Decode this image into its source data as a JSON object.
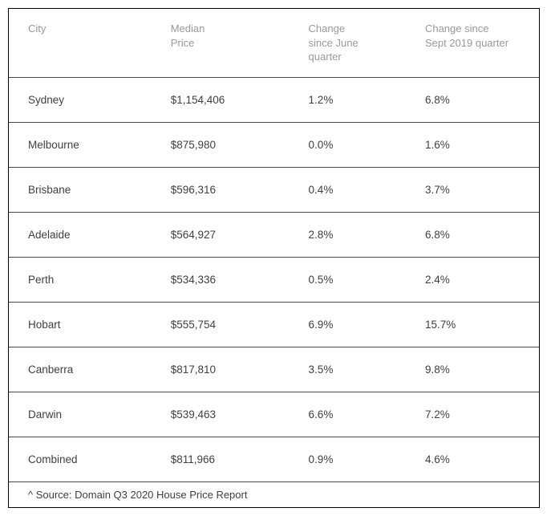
{
  "table": {
    "type": "table",
    "columns": [
      {
        "label": "City",
        "width_pct": 29,
        "align": "left"
      },
      {
        "label": "Median\nPrice",
        "width_pct": 26,
        "align": "left"
      },
      {
        "label": "Change\nsince June\nquarter",
        "width_pct": 22,
        "align": "left"
      },
      {
        "label": "Change since\nSept 2019 quarter",
        "width_pct": 23,
        "align": "left"
      }
    ],
    "rows": [
      [
        "Sydney",
        "$1,154,406",
        "1.2%",
        "6.8%"
      ],
      [
        "Melbourne",
        "$875,980",
        "0.0%",
        "1.6%"
      ],
      [
        "Brisbane",
        "$596,316",
        "0.4%",
        "3.7%"
      ],
      [
        "Adelaide",
        "$564,927",
        "2.8%",
        "6.8%"
      ],
      [
        "Perth",
        "$534,336",
        "0.5%",
        "2.4%"
      ],
      [
        "Hobart",
        "$555,754",
        "6.9%",
        "15.7%"
      ],
      [
        "Canberra",
        "$817,810",
        "3.5%",
        "9.8%"
      ],
      [
        "Darwin",
        "$539,463",
        "6.6%",
        "7.2%"
      ],
      [
        "Combined",
        "$811,966",
        "0.9%",
        "4.6%"
      ]
    ],
    "header_text_color": "#9a9a9a",
    "body_text_color": "#3f3f3f",
    "row_border_color": "#4a4a4a",
    "outer_border_color": "#000000",
    "background_color": "#ffffff",
    "header_fontsize": 13,
    "body_fontsize": 13.5,
    "source_fontsize": 13,
    "cell_padding_v": 20,
    "header_padding_v": 16
  },
  "source": "^ Source: Domain Q3 2020 House Price Report"
}
